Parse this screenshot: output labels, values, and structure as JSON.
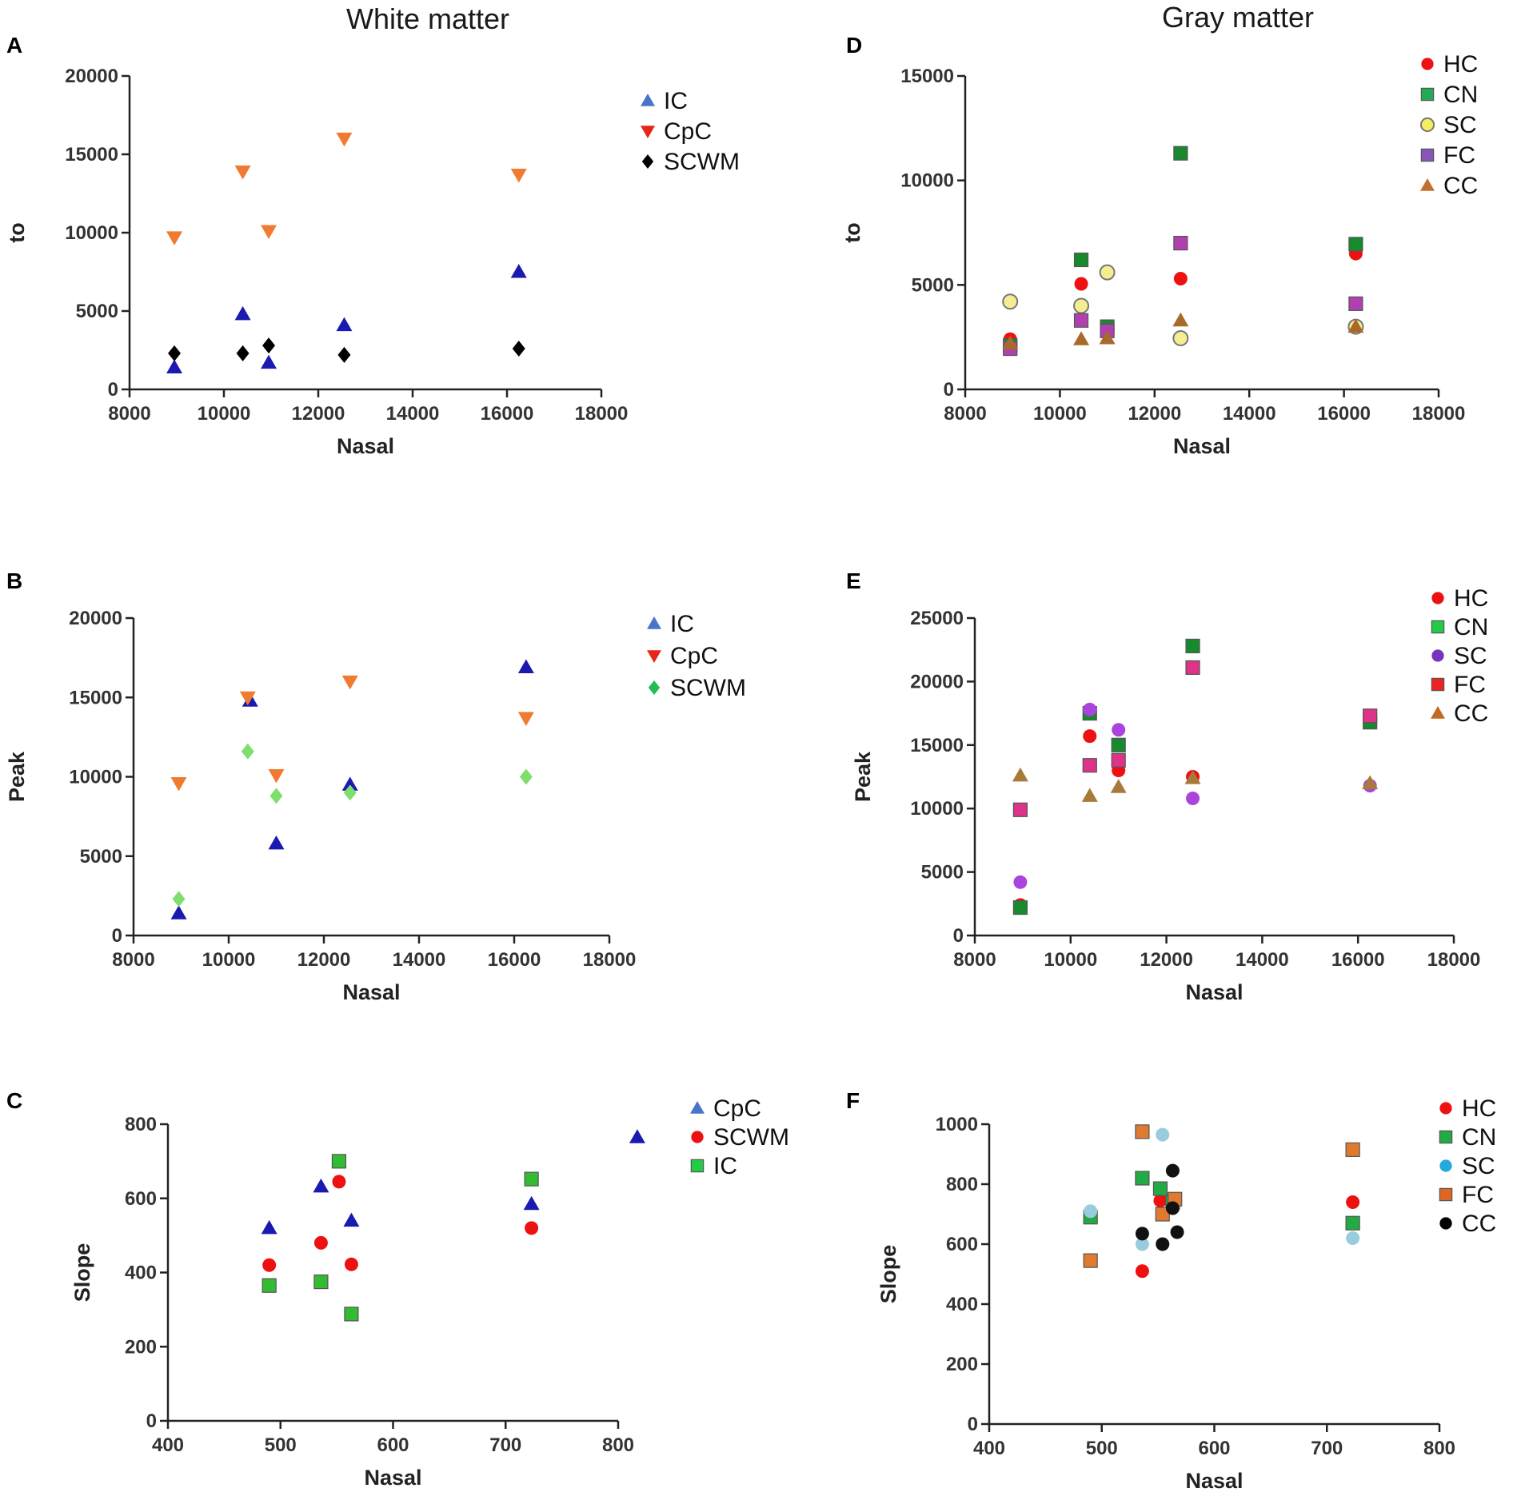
{
  "column_titles": {
    "left": "White matter",
    "right": "Gray matter"
  },
  "chart_data": [
    {
      "panel": "A",
      "type": "scatter",
      "title": "White matter",
      "xlabel": "Nasal",
      "ylabel": "to",
      "xlim": [
        8000,
        18000
      ],
      "ylim": [
        0,
        20000
      ],
      "xticks": [
        "8000",
        "10000",
        "12000",
        "14000",
        "16000",
        "18000"
      ],
      "yticks": [
        "0",
        "5000",
        "10000",
        "15000",
        "20000"
      ],
      "legend_position": "top-right",
      "series": [
        {
          "name": "IC",
          "marker": "triangle-up",
          "color": "#1a1ab0",
          "legend_color": "#4a74c8",
          "points": [
            [
              8950,
              1400
            ],
            [
              10400,
              4800
            ],
            [
              10950,
              1700
            ],
            [
              12550,
              4100
            ],
            [
              16250,
              7500
            ]
          ]
        },
        {
          "name": "CpC",
          "marker": "triangle-down",
          "color": "#f07a30",
          "legend_color": "#e8251a",
          "points": [
            [
              8950,
              9700
            ],
            [
              10400,
              13900
            ],
            [
              10950,
              10100
            ],
            [
              12550,
              16000
            ],
            [
              16250,
              13700
            ]
          ]
        },
        {
          "name": "SCWM",
          "marker": "diamond",
          "color": "#000000",
          "legend_color": "#000000",
          "points": [
            [
              8950,
              2300
            ],
            [
              10400,
              2300
            ],
            [
              10950,
              2800
            ],
            [
              12550,
              2200
            ],
            [
              16250,
              2600
            ]
          ]
        }
      ]
    },
    {
      "panel": "B",
      "type": "scatter",
      "xlabel": "Nasal",
      "ylabel": "Peak",
      "xlim": [
        8000,
        18000
      ],
      "ylim": [
        0,
        20000
      ],
      "xticks": [
        "8000",
        "10000",
        "12000",
        "14000",
        "16000",
        "18000"
      ],
      "yticks": [
        "0",
        "5000",
        "10000",
        "15000",
        "20000"
      ],
      "legend_position": "top-right",
      "series": [
        {
          "name": "IC",
          "marker": "triangle-up",
          "color": "#1a1ab0",
          "legend_color": "#4a74c8",
          "points": [
            [
              8950,
              1400
            ],
            [
              10450,
              14800
            ],
            [
              11000,
              5800
            ],
            [
              12550,
              9500
            ],
            [
              16250,
              16900
            ]
          ]
        },
        {
          "name": "CpC",
          "marker": "triangle-down",
          "color": "#f07a30",
          "legend_color": "#e8251a",
          "points": [
            [
              8950,
              9600
            ],
            [
              10400,
              15000
            ],
            [
              11000,
              10100
            ],
            [
              12550,
              16000
            ],
            [
              16250,
              13700
            ]
          ]
        },
        {
          "name": "SCWM",
          "marker": "diamond",
          "color": "#7ede6e",
          "legend_color": "#22bb55",
          "points": [
            [
              8950,
              2300
            ],
            [
              10400,
              11600
            ],
            [
              11000,
              8800
            ],
            [
              12550,
              9000
            ],
            [
              16250,
              10000
            ]
          ]
        }
      ]
    },
    {
      "panel": "C",
      "type": "scatter",
      "xlabel": "Nasal",
      "ylabel": "Slope",
      "xlim": [
        400,
        800
      ],
      "ylim": [
        0,
        800
      ],
      "xticks": [
        "400",
        "500",
        "600",
        "700",
        "800"
      ],
      "yticks": [
        "0",
        "200",
        "400",
        "600",
        "800"
      ],
      "legend_position": "top-right",
      "series": [
        {
          "name": "CpC",
          "marker": "triangle-up",
          "color": "#1a1ab0",
          "legend_color": "#4a74c8",
          "points": [
            [
              490,
              520
            ],
            [
              536,
              632
            ],
            [
              563,
              540
            ],
            [
              723,
              585
            ],
            [
              817,
              765
            ]
          ]
        },
        {
          "name": "SCWM",
          "marker": "circle",
          "color": "#ee1111",
          "legend_color": "#ee1111",
          "points": [
            [
              490,
              420
            ],
            [
              536,
              480
            ],
            [
              552,
              645
            ],
            [
              563,
              422
            ],
            [
              723,
              520
            ]
          ]
        },
        {
          "name": "IC",
          "marker": "square",
          "color": "#33bb33",
          "legend_color": "#22cc44",
          "points": [
            [
              490,
              365
            ],
            [
              536,
              375
            ],
            [
              552,
              700
            ],
            [
              563,
              288
            ],
            [
              723,
              652
            ]
          ]
        }
      ]
    },
    {
      "panel": "D",
      "type": "scatter",
      "title": "Gray matter",
      "xlabel": "Nasal",
      "ylabel": "to",
      "xlim": [
        8000,
        18000
      ],
      "ylim": [
        0,
        15000
      ],
      "xticks": [
        "8000",
        "10000",
        "12000",
        "14000",
        "16000",
        "18000"
      ],
      "yticks": [
        "0",
        "5000",
        "10000",
        "15000"
      ],
      "legend_position": "top-right",
      "series": [
        {
          "name": "HC",
          "marker": "circle",
          "color": "#ee1111",
          "legend_color": "#ee1111",
          "points": [
            [
              8950,
              2400
            ],
            [
              10450,
              5050
            ],
            [
              11000,
              2700
            ],
            [
              12550,
              5300
            ],
            [
              16250,
              6500
            ]
          ]
        },
        {
          "name": "CN",
          "marker": "square",
          "color": "#188a2e",
          "legend_color": "#22aa55",
          "points": [
            [
              8950,
              2100
            ],
            [
              10450,
              6200
            ],
            [
              11000,
              3000
            ],
            [
              12550,
              11300
            ],
            [
              16250,
              6950
            ]
          ]
        },
        {
          "name": "SC",
          "marker": "circle-outline",
          "color": "#f5ee90",
          "legend_color": "#f5ee60",
          "points": [
            [
              8950,
              4200
            ],
            [
              10450,
              4000
            ],
            [
              11000,
              5600
            ],
            [
              12550,
              2450
            ],
            [
              16250,
              3000
            ]
          ]
        },
        {
          "name": "FC",
          "marker": "square",
          "color": "#b040b0",
          "legend_color": "#8855bb",
          "points": [
            [
              8950,
              1950
            ],
            [
              10450,
              3300
            ],
            [
              11000,
              2800
            ],
            [
              12550,
              7000
            ],
            [
              16250,
              4100
            ]
          ]
        },
        {
          "name": "CC",
          "marker": "triangle-up",
          "color": "#a86a2a",
          "legend_color": "#c07030",
          "points": [
            [
              8950,
              2200
            ],
            [
              10450,
              2400
            ],
            [
              11000,
              2450
            ],
            [
              12550,
              3300
            ],
            [
              16250,
              3000
            ]
          ]
        }
      ]
    },
    {
      "panel": "E",
      "type": "scatter",
      "xlabel": "Nasal",
      "ylabel": "Peak",
      "xlim": [
        8000,
        18000
      ],
      "ylim": [
        0,
        25000
      ],
      "xticks": [
        "8000",
        "10000",
        "12000",
        "14000",
        "16000",
        "18000"
      ],
      "yticks": [
        "0",
        "5000",
        "10000",
        "15000",
        "20000",
        "25000"
      ],
      "legend_position": "top-right",
      "series": [
        {
          "name": "HC",
          "marker": "circle",
          "color": "#ee1111",
          "legend_color": "#ee1111",
          "points": [
            [
              8950,
              2400
            ],
            [
              10400,
              15700
            ],
            [
              11000,
              13000
            ],
            [
              12550,
              12500
            ],
            [
              16250,
              17000
            ]
          ]
        },
        {
          "name": "CN",
          "marker": "square",
          "color": "#188a2e",
          "legend_color": "#22cc44",
          "points": [
            [
              8950,
              2200
            ],
            [
              10400,
              17500
            ],
            [
              11000,
              15000
            ],
            [
              12550,
              22800
            ],
            [
              16250,
              16800
            ]
          ]
        },
        {
          "name": "SC",
          "marker": "circle",
          "color": "#aa44dd",
          "legend_color": "#7733bb",
          "points": [
            [
              8950,
              4200
            ],
            [
              10400,
              17800
            ],
            [
              11000,
              16200
            ],
            [
              12550,
              10800
            ],
            [
              16250,
              11800
            ]
          ]
        },
        {
          "name": "FC",
          "marker": "square",
          "color": "#dd3388",
          "legend_color": "#ee2222",
          "points": [
            [
              8950,
              9900
            ],
            [
              10400,
              13400
            ],
            [
              11000,
              13800
            ],
            [
              12550,
              21100
            ],
            [
              16250,
              17300
            ]
          ]
        },
        {
          "name": "CC",
          "marker": "triangle-up",
          "color": "#a87a3a",
          "legend_color": "#c06a22",
          "points": [
            [
              8950,
              12600
            ],
            [
              10400,
              11000
            ],
            [
              11000,
              11700
            ],
            [
              12550,
              12400
            ],
            [
              16250,
              12000
            ]
          ]
        }
      ]
    },
    {
      "panel": "F",
      "type": "scatter",
      "xlabel": "Nasal",
      "ylabel": "Slope",
      "xlim": [
        400,
        800
      ],
      "ylim": [
        0,
        1000
      ],
      "xticks": [
        "400",
        "500",
        "600",
        "700",
        "800"
      ],
      "yticks": [
        "0",
        "200",
        "400",
        "600",
        "800",
        "1000"
      ],
      "legend_position": "top-right",
      "series": [
        {
          "name": "HC",
          "marker": "circle",
          "color": "#ee1111",
          "legend_color": "#ee1111",
          "points": [
            [
              490,
              705
            ],
            [
              536,
              510
            ],
            [
              552,
              745
            ],
            [
              563,
              720
            ],
            [
              723,
              740
            ]
          ]
        },
        {
          "name": "CN",
          "marker": "square",
          "color": "#22aa44",
          "legend_color": "#22aa44",
          "points": [
            [
              490,
              690
            ],
            [
              536,
              820
            ],
            [
              552,
              785
            ],
            [
              563,
              740
            ],
            [
              723,
              670
            ]
          ]
        },
        {
          "name": "SC",
          "marker": "circle",
          "color": "#99ccdd",
          "legend_color": "#22aadd",
          "points": [
            [
              490,
              710
            ],
            [
              536,
              600
            ],
            [
              554,
              965
            ],
            [
              565,
              735
            ],
            [
              723,
              620
            ]
          ]
        },
        {
          "name": "FC",
          "marker": "square",
          "color": "#e07a30",
          "legend_color": "#dd6622",
          "points": [
            [
              490,
              545
            ],
            [
              536,
              975
            ],
            [
              554,
              700
            ],
            [
              565,
              750
            ],
            [
              723,
              915
            ]
          ]
        },
        {
          "name": "CC",
          "marker": "circle",
          "color": "#111111",
          "legend_color": "#000000",
          "points": [
            [
              536,
              635
            ],
            [
              554,
              600
            ],
            [
              563,
              720
            ],
            [
              567,
              640
            ],
            [
              563,
              845
            ]
          ]
        }
      ]
    }
  ]
}
